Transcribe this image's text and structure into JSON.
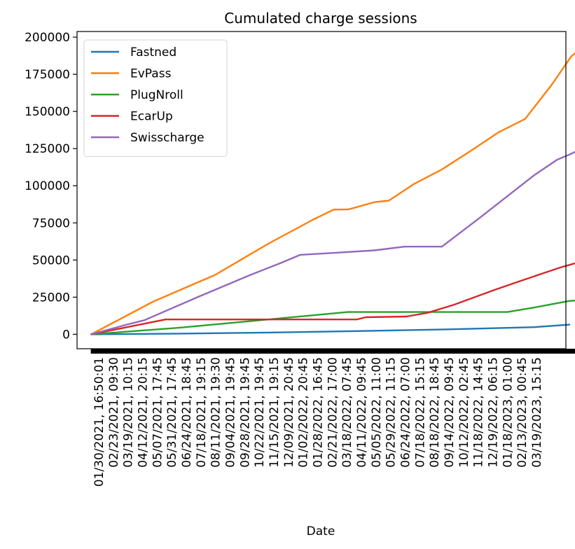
{
  "chart_data": {
    "type": "line",
    "title": "Cumulated charge sessions",
    "xlabel": "Date",
    "ylabel": "",
    "ylim": [
      -9700,
      203800
    ],
    "xlim": [
      -0.8,
      26.8
    ],
    "yticks": [
      0,
      25000,
      50000,
      75000,
      100000,
      125000,
      150000,
      175000,
      200000
    ],
    "ytick_labels": [
      "0",
      "25000",
      "50000",
      "75000",
      "100000",
      "125000",
      "150000",
      "175000",
      "200000"
    ],
    "xtick_labels": [
      "01/30/2021, 16:50:01",
      "02/23/2021, 09:30",
      "03/19/2021, 10:15",
      "04/12/2021, 20:15",
      "05/07/2021, 17:45",
      "05/31/2021, 17:45",
      "06/24/2021, 18:45",
      "07/18/2021, 19:15",
      "08/11/2021, 19:30",
      "09/04/2021, 19:45",
      "09/28/2021, 19:45",
      "10/22/2021, 19:45",
      "11/15/2021, 19:15",
      "12/09/2021, 20:45",
      "01/02/2022, 20:45",
      "01/28/2022, 16:45",
      "02/21/2022, 17:00",
      "03/18/2022, 07:45",
      "04/11/2022, 09:45",
      "05/05/2022, 11:00",
      "05/29/2022, 11:15",
      "06/24/2022, 07:00",
      "07/18/2022, 15:15",
      "08/18/2022, 18:45",
      "09/14/2022, 09:45",
      "10/12/2022, 02:45",
      "11/18/2022, 14:45",
      "12/19/2022, 06:15",
      "01/18/2023, 01:00",
      "02/13/2023, 00:45",
      "03/19/2023, 15:15"
    ],
    "legend_position": "top-left",
    "grid": false,
    "series": [
      {
        "name": "Fastned",
        "color": "#1f77b4",
        "points": [
          [
            0,
            0
          ],
          [
            5,
            500
          ],
          [
            10,
            1200
          ],
          [
            15,
            2200
          ],
          [
            20,
            3300
          ],
          [
            25,
            4800
          ],
          [
            27,
            6500
          ]
        ]
      },
      {
        "name": "EvPass",
        "color": "#ff7f0e",
        "points": [
          [
            0,
            0
          ],
          [
            3.5,
            22000
          ],
          [
            7,
            40000
          ],
          [
            10,
            61000
          ],
          [
            12.5,
            77000
          ],
          [
            13.7,
            84000
          ],
          [
            14.5,
            84000
          ],
          [
            16,
            89000
          ],
          [
            16.8,
            90000
          ],
          [
            18.2,
            101000
          ],
          [
            19.8,
            111000
          ],
          [
            21.5,
            124000
          ],
          [
            23,
            136000
          ],
          [
            24.5,
            145000
          ],
          [
            26,
            168000
          ],
          [
            27.1,
            187000
          ],
          [
            27.8,
            194000
          ]
        ]
      },
      {
        "name": "PlugNroll",
        "color": "#2ca02c",
        "points": [
          [
            0,
            0
          ],
          [
            5,
            4500
          ],
          [
            10,
            10000
          ],
          [
            14.5,
            15000
          ],
          [
            20,
            15000
          ],
          [
            23.5,
            15000
          ],
          [
            25,
            18000
          ],
          [
            27,
            22500
          ],
          [
            27.8,
            23000
          ]
        ]
      },
      {
        "name": "EcarUp",
        "color": "#d62728",
        "points": [
          [
            0,
            0
          ],
          [
            4.2,
            10000
          ],
          [
            9,
            10000
          ],
          [
            13,
            10000
          ],
          [
            15,
            10000
          ],
          [
            15.5,
            11500
          ],
          [
            17.8,
            12000
          ],
          [
            19,
            14500
          ],
          [
            20.5,
            20000
          ],
          [
            22.8,
            30000
          ],
          [
            24,
            35000
          ],
          [
            25.5,
            41000
          ],
          [
            26.5,
            45000
          ],
          [
            27.8,
            49500
          ]
        ]
      },
      {
        "name": "Swisscharge",
        "color": "#9467bd",
        "points": [
          [
            0,
            0
          ],
          [
            2,
            6500
          ],
          [
            2.5,
            8000
          ],
          [
            3,
            9500
          ],
          [
            6,
            25000
          ],
          [
            9,
            40000
          ],
          [
            10.7,
            48000
          ],
          [
            11.8,
            53500
          ],
          [
            14,
            55000
          ],
          [
            16,
            56500
          ],
          [
            17.7,
            59000
          ],
          [
            19.8,
            59000
          ],
          [
            22,
            79000
          ],
          [
            23.5,
            93000
          ],
          [
            25,
            107000
          ],
          [
            26.3,
            117500
          ],
          [
            27,
            121000
          ],
          [
            27.8,
            125500
          ]
        ]
      }
    ]
  }
}
